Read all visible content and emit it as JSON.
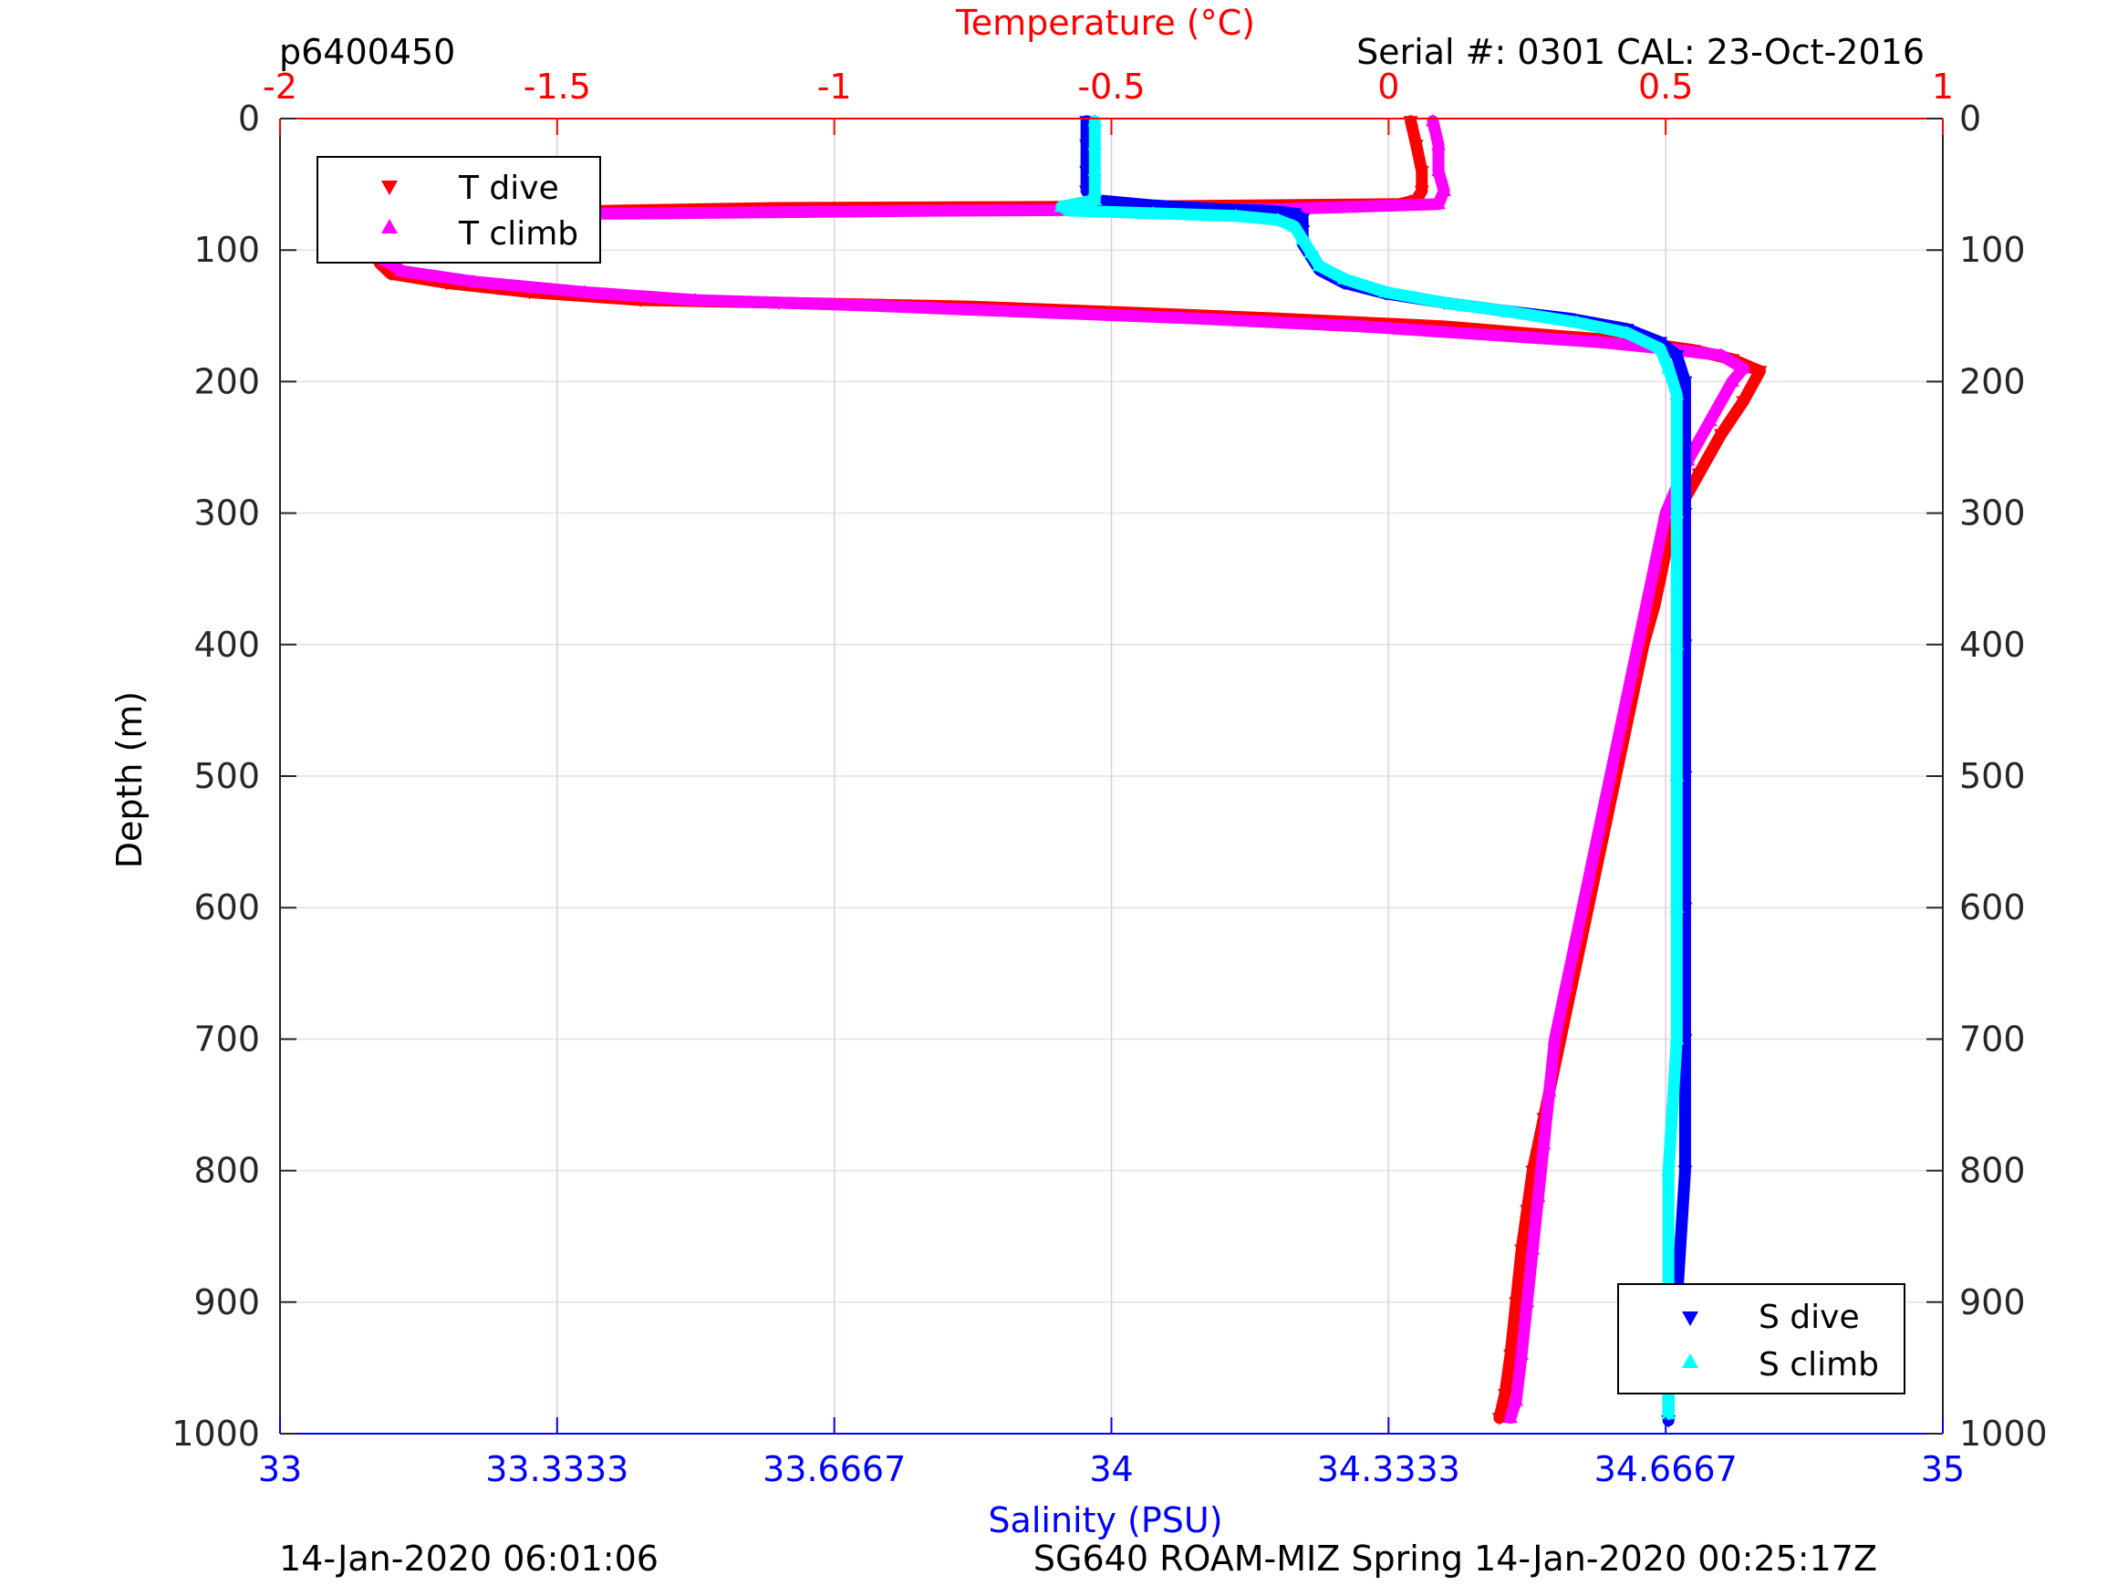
{
  "header": {
    "left_id": "p6400450",
    "serial": "Serial #: 0301  CAL: 23-Oct-2016"
  },
  "footer": {
    "left_stamp": "14-Jan-2020 06:01:06",
    "right_stamp": "SG640 ROAM-MIZ Spring 14-Jan-2020 00:25:17Z"
  },
  "legend_temperature": [
    "T dive",
    "T climb"
  ],
  "legend_salinity": [
    "S dive",
    "S climb"
  ],
  "colors": {
    "temperature_axis": "#ff0000",
    "salinity_axis": "#0000ff",
    "t_dive": "#ff0000",
    "t_climb": "#ff00ff",
    "s_dive": "#0000ff",
    "s_climb": "#00ffff"
  },
  "chart_data": {
    "type": "scatter",
    "ylabel": "Depth (m)",
    "ylim": [
      0,
      1000
    ],
    "y_reversed": true,
    "yticks": [
      0,
      100,
      200,
      300,
      400,
      500,
      600,
      700,
      800,
      900,
      1000
    ],
    "x_top": {
      "label": "Temperature (°C)",
      "lim": [
        -2,
        1
      ],
      "ticks": [
        -2,
        -1.5,
        -1,
        -0.5,
        0,
        0.5,
        1
      ],
      "tick_labels": [
        "-2",
        "-1.5",
        "-1",
        "-0.5",
        "0",
        "0.5",
        "1"
      ]
    },
    "x_bottom": {
      "label": "Salinity (PSU)",
      "lim": [
        33,
        35
      ],
      "ticks": [
        33,
        33.3333,
        33.6667,
        34,
        34.3333,
        34.6667,
        35
      ],
      "tick_labels": [
        "33",
        "33.3333",
        "33.6667",
        "34",
        "34.3333",
        "34.6667",
        "35"
      ]
    },
    "grid": true,
    "legend_temperature_placement": "top-left",
    "legend_salinity_placement": "bottom-right",
    "series": [
      {
        "name": "T dive",
        "axis": "temperature",
        "marker": "triangle-down",
        "points": [
          [
            0.04,
            2
          ],
          [
            0.05,
            20
          ],
          [
            0.06,
            40
          ],
          [
            0.06,
            55
          ],
          [
            0.05,
            62
          ],
          [
            0.02,
            65
          ],
          [
            -0.5,
            67
          ],
          [
            -1.1,
            68
          ],
          [
            -1.4,
            70
          ],
          [
            -1.6,
            72
          ],
          [
            -1.75,
            75
          ],
          [
            -1.8,
            80
          ],
          [
            -1.82,
            90
          ],
          [
            -1.82,
            100
          ],
          [
            -1.82,
            110
          ],
          [
            -1.8,
            118
          ],
          [
            -1.7,
            125
          ],
          [
            -1.55,
            132
          ],
          [
            -1.35,
            138
          ],
          [
            -1.1,
            140
          ],
          [
            -0.75,
            143
          ],
          [
            -0.5,
            147
          ],
          [
            -0.2,
            152
          ],
          [
            0.1,
            158
          ],
          [
            0.3,
            165
          ],
          [
            0.45,
            170
          ],
          [
            0.55,
            176
          ],
          [
            0.62,
            183
          ],
          [
            0.67,
            192
          ],
          [
            0.64,
            215
          ],
          [
            0.6,
            240
          ],
          [
            0.56,
            270
          ],
          [
            0.52,
            300
          ],
          [
            0.5,
            330
          ],
          [
            0.48,
            370
          ],
          [
            0.46,
            400
          ],
          [
            0.44,
            440
          ],
          [
            0.42,
            480
          ],
          [
            0.4,
            520
          ],
          [
            0.38,
            560
          ],
          [
            0.36,
            600
          ],
          [
            0.34,
            640
          ],
          [
            0.32,
            680
          ],
          [
            0.3,
            720
          ],
          [
            0.28,
            760
          ],
          [
            0.26,
            800
          ],
          [
            0.25,
            830
          ],
          [
            0.24,
            860
          ],
          [
            0.23,
            900
          ],
          [
            0.22,
            940
          ],
          [
            0.21,
            970
          ],
          [
            0.2,
            988
          ]
        ]
      },
      {
        "name": "T climb",
        "axis": "temperature",
        "marker": "triangle-up",
        "points": [
          [
            0.08,
            2
          ],
          [
            0.09,
            20
          ],
          [
            0.09,
            40
          ],
          [
            0.1,
            55
          ],
          [
            0.09,
            65
          ],
          [
            -0.2,
            69
          ],
          [
            -0.8,
            70
          ],
          [
            -1.3,
            72
          ],
          [
            -1.65,
            73
          ],
          [
            -1.78,
            76
          ],
          [
            -1.81,
            82
          ],
          [
            -1.81,
            95
          ],
          [
            -1.81,
            108
          ],
          [
            -1.78,
            116
          ],
          [
            -1.65,
            124
          ],
          [
            -1.45,
            132
          ],
          [
            -1.25,
            138
          ],
          [
            -0.95,
            142
          ],
          [
            -0.65,
            147
          ],
          [
            -0.35,
            152
          ],
          [
            -0.05,
            158
          ],
          [
            0.2,
            165
          ],
          [
            0.38,
            170
          ],
          [
            0.5,
            175
          ],
          [
            0.6,
            180
          ],
          [
            0.64,
            190
          ],
          [
            0.62,
            200
          ],
          [
            0.58,
            230
          ],
          [
            0.54,
            260
          ],
          [
            0.5,
            300
          ],
          [
            0.48,
            340
          ],
          [
            0.46,
            380
          ],
          [
            0.44,
            420
          ],
          [
            0.42,
            460
          ],
          [
            0.4,
            500
          ],
          [
            0.38,
            540
          ],
          [
            0.36,
            580
          ],
          [
            0.34,
            620
          ],
          [
            0.32,
            660
          ],
          [
            0.3,
            700
          ],
          [
            0.29,
            740
          ],
          [
            0.28,
            780
          ],
          [
            0.27,
            820
          ],
          [
            0.26,
            860
          ],
          [
            0.25,
            900
          ],
          [
            0.24,
            940
          ],
          [
            0.23,
            975
          ],
          [
            0.22,
            988
          ]
        ]
      },
      {
        "name": "S dive",
        "axis": "salinity",
        "marker": "triangle-down",
        "points": [
          [
            33.97,
            2
          ],
          [
            33.97,
            20
          ],
          [
            33.97,
            40
          ],
          [
            33.97,
            55
          ],
          [
            33.98,
            62
          ],
          [
            34.05,
            66
          ],
          [
            34.13,
            69
          ],
          [
            34.19,
            70
          ],
          [
            34.22,
            72
          ],
          [
            34.23,
            76
          ],
          [
            34.23,
            85
          ],
          [
            34.23,
            95
          ],
          [
            34.24,
            105
          ],
          [
            34.25,
            115
          ],
          [
            34.28,
            125
          ],
          [
            34.33,
            133
          ],
          [
            34.4,
            140
          ],
          [
            34.47,
            146
          ],
          [
            34.55,
            152
          ],
          [
            34.62,
            160
          ],
          [
            34.66,
            170
          ],
          [
            34.68,
            180
          ],
          [
            34.69,
            200
          ],
          [
            34.69,
            250
          ],
          [
            34.69,
            300
          ],
          [
            34.69,
            400
          ],
          [
            34.69,
            500
          ],
          [
            34.69,
            600
          ],
          [
            34.69,
            700
          ],
          [
            34.69,
            800
          ],
          [
            34.68,
            900
          ],
          [
            34.67,
            950
          ],
          [
            34.67,
            990
          ]
        ]
      },
      {
        "name": "S climb",
        "axis": "salinity",
        "marker": "triangle-up",
        "points": [
          [
            33.98,
            2
          ],
          [
            33.98,
            20
          ],
          [
            33.98,
            40
          ],
          [
            33.98,
            55
          ],
          [
            33.98,
            62
          ],
          [
            33.94,
            67
          ],
          [
            33.95,
            70
          ],
          [
            34.05,
            72
          ],
          [
            34.15,
            74
          ],
          [
            34.2,
            77
          ],
          [
            34.22,
            82
          ],
          [
            34.23,
            92
          ],
          [
            34.24,
            102
          ],
          [
            34.25,
            112
          ],
          [
            34.28,
            122
          ],
          [
            34.33,
            132
          ],
          [
            34.4,
            140
          ],
          [
            34.48,
            147
          ],
          [
            34.56,
            155
          ],
          [
            34.62,
            163
          ],
          [
            34.66,
            175
          ],
          [
            34.67,
            190
          ],
          [
            34.68,
            210
          ],
          [
            34.68,
            300
          ],
          [
            34.68,
            400
          ],
          [
            34.68,
            500
          ],
          [
            34.68,
            600
          ],
          [
            34.68,
            700
          ],
          [
            34.67,
            800
          ],
          [
            34.67,
            900
          ],
          [
            34.67,
            950
          ],
          [
            34.67,
            985
          ]
        ]
      }
    ]
  }
}
